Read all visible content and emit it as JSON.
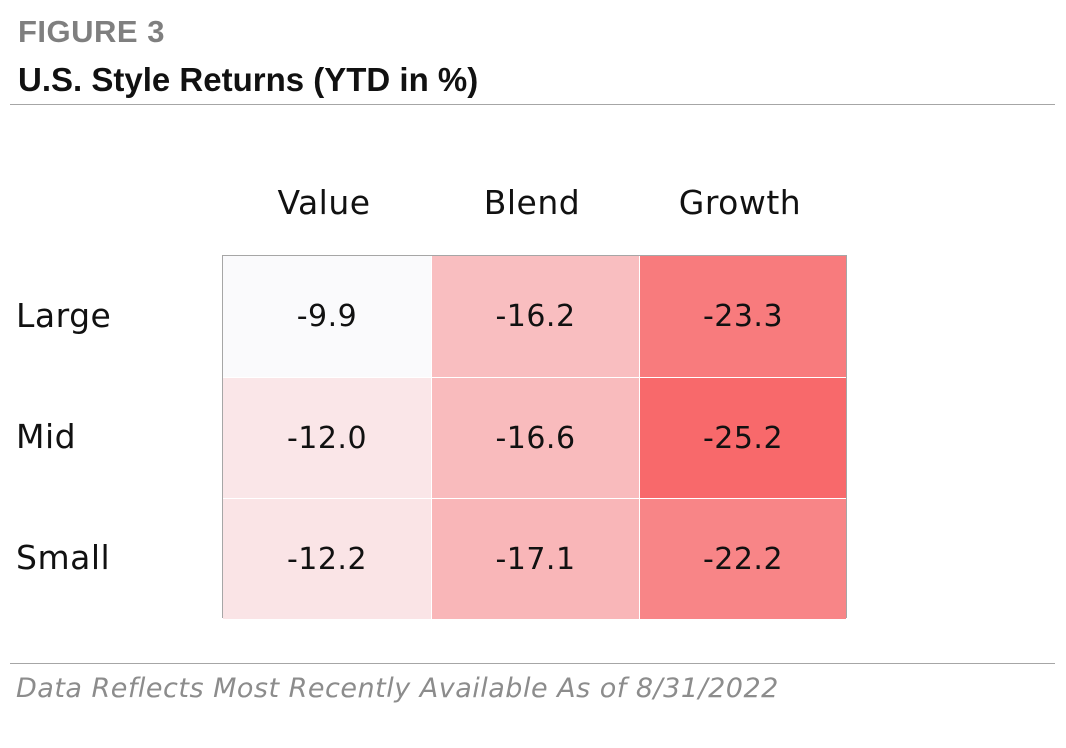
{
  "header": {
    "figure_label": "FIGURE 3",
    "title": "U.S. Style Returns (YTD in %)"
  },
  "footnote": "Data Reflects Most Recently Available As of 8/31/2022",
  "colors": {
    "heat_low": "#fafafc",
    "heat_high": "#f8696b",
    "rule": "#a6a6a6"
  },
  "chart_data": {
    "type": "heatmap",
    "columns": [
      "Value",
      "Blend",
      "Growth"
    ],
    "rows": [
      "Large",
      "Mid",
      "Small"
    ],
    "values": [
      [
        -9.9,
        -16.2,
        -23.3
      ],
      [
        -12.0,
        -16.6,
        -25.2
      ],
      [
        -12.2,
        -17.1,
        -22.2
      ]
    ],
    "value_labels": [
      [
        "-9.9",
        "-16.2",
        "-23.3"
      ],
      [
        "-12.0",
        "-16.6",
        "-25.2"
      ],
      [
        "-12.2",
        "-17.1",
        "-22.2"
      ]
    ]
  }
}
